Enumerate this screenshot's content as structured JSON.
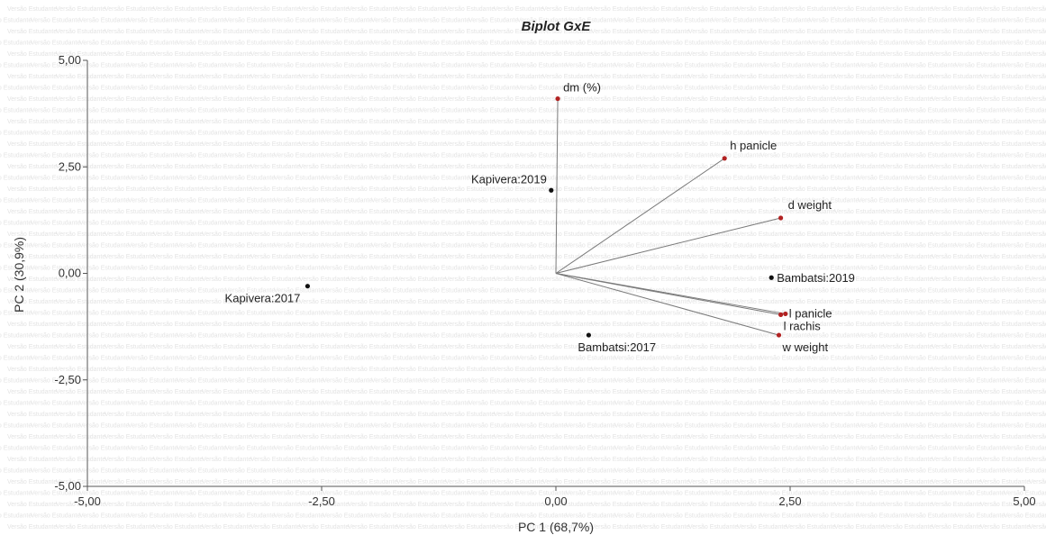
{
  "chart_data": {
    "type": "scatter",
    "title": "Biplot GxE",
    "xlabel": "PC 1 (68,7%)",
    "ylabel": "PC 2 (30,9%)",
    "xlim": [
      -5,
      5
    ],
    "ylim": [
      -5,
      5
    ],
    "x_ticks": [
      "-5,00",
      "-2,50",
      "0,00",
      "2,50",
      "5,00"
    ],
    "y_ticks": [
      "5,00",
      "2,50",
      "0,00",
      "-2,50",
      "-5,00"
    ],
    "watermark_text": "Versão Estudante",
    "grid": false,
    "vector_color": "#7a7a7a",
    "vector_tip_color": "#b22222",
    "point_color": "#111111",
    "vectors": [
      {
        "label": "dm (%)",
        "x": 0.02,
        "y": 4.1
      },
      {
        "label": "h panicle",
        "x": 1.8,
        "y": 2.7
      },
      {
        "label": "d weight",
        "x": 2.4,
        "y": 1.3
      },
      {
        "label": "l panicle",
        "x": 2.45,
        "y": -0.95
      },
      {
        "label": "l rachis",
        "x": 2.4,
        "y": -0.97
      },
      {
        "label": "w weight",
        "x": 2.38,
        "y": -1.45
      }
    ],
    "points": [
      {
        "label": "Kapivera:2019",
        "x": -0.05,
        "y": 1.95
      },
      {
        "label": "Bambatsi:2019",
        "x": 2.3,
        "y": -0.1
      },
      {
        "label": "Kapivera:2017",
        "x": -2.65,
        "y": -0.3
      },
      {
        "label": "Bambatsi:2017",
        "x": 0.35,
        "y": -1.45
      }
    ]
  }
}
